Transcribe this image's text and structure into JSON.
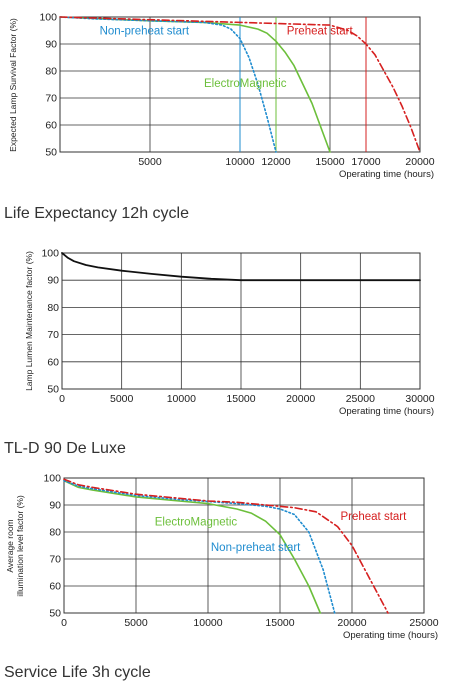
{
  "captions": [
    "Life Expectancy 12h cycle",
    "TL-D 90 De Luxe",
    "Service Life 3h cycle"
  ],
  "colors": {
    "grid": "#333333",
    "black": "#111111",
    "green": "#6cbf3b",
    "blue": "#1f8ccf",
    "red": "#d62020"
  },
  "chart_data": [
    {
      "type": "line",
      "title": "",
      "xlabel": "Operating time (hours)",
      "ylabel": "Expected Lamp Survival Factor (%)",
      "xlim": [
        0,
        20000
      ],
      "ylim": [
        50,
        100
      ],
      "xticks": [
        5000,
        10000,
        12000,
        15000,
        17000,
        20000
      ],
      "xtick_labels": [
        "5000",
        "10000",
        "12000",
        "15000",
        "17000",
        "20000"
      ],
      "xgrid": [
        5000,
        10000,
        15000,
        20000
      ],
      "yticks": [
        50,
        60,
        70,
        80,
        90,
        100
      ],
      "ytick_labels": [
        "50",
        "60",
        "70",
        "80",
        "90",
        "100"
      ],
      "grid": true,
      "series": [
        {
          "name": "ElectroMagnetic",
          "color": "green",
          "style": "solid",
          "x": [
            0,
            2000,
            5000,
            8000,
            10000,
            11000,
            11500,
            12000,
            12500,
            13000,
            14000,
            15000
          ],
          "y": [
            100,
            99.4,
            98.6,
            98,
            97,
            95.5,
            94,
            91,
            87,
            82,
            68,
            50
          ]
        },
        {
          "name": "Non-preheat start",
          "color": "blue",
          "style": "dotted",
          "x": [
            0,
            2000,
            5000,
            8000,
            9000,
            9500,
            10000,
            10500,
            11000,
            11500,
            12000
          ],
          "y": [
            100,
            99.3,
            98.6,
            98,
            97,
            95.5,
            92,
            85,
            75,
            63,
            50
          ]
        },
        {
          "name": "Preheat start",
          "color": "red",
          "style": "dashdot",
          "x": [
            0,
            5000,
            10000,
            15000,
            16000,
            16500,
            17000,
            17500,
            18000,
            18500,
            19000,
            19500,
            20000
          ],
          "y": [
            100,
            99,
            98,
            97,
            95,
            93,
            90,
            86,
            80,
            74,
            67,
            59,
            50
          ]
        }
      ],
      "vlines": [
        {
          "x": 10000,
          "color": "blue"
        },
        {
          "x": 12000,
          "color": "green"
        },
        {
          "x": 17000,
          "color": "red"
        }
      ],
      "annotations": [
        {
          "text": "Non-preheat start",
          "color": "blue",
          "x": 2200,
          "y": 93.5
        },
        {
          "text": "ElectroMagnetic",
          "color": "green",
          "x": 8000,
          "y": 74
        },
        {
          "text": "Preheat start",
          "color": "red",
          "x": 12600,
          "y": 93.5
        }
      ]
    },
    {
      "type": "line",
      "title": "",
      "xlabel": "Operating time (hours)",
      "ylabel": "Lamp Lumen Maintenance factor (%)",
      "xlim": [
        0,
        30000
      ],
      "ylim": [
        50,
        100
      ],
      "xticks": [
        0,
        5000,
        10000,
        15000,
        20000,
        25000,
        30000
      ],
      "xtick_labels": [
        "0",
        "5000",
        "10000",
        "15000",
        "20000",
        "25000",
        "30000"
      ],
      "xgrid": [
        0,
        5000,
        10000,
        15000,
        20000,
        25000,
        30000
      ],
      "yticks": [
        50,
        60,
        70,
        80,
        90,
        100
      ],
      "ytick_labels": [
        "50",
        "60",
        "70",
        "80",
        "90",
        "100"
      ],
      "grid": true,
      "series": [
        {
          "name": "",
          "color": "black",
          "style": "solid",
          "x": [
            0,
            500,
            1000,
            2000,
            3000,
            5000,
            7500,
            10000,
            12500,
            15000,
            20000,
            25000,
            30000
          ],
          "y": [
            100,
            98.2,
            97,
            95.6,
            94.7,
            93.5,
            92.3,
            91.3,
            90.5,
            90,
            90,
            90,
            90
          ]
        }
      ],
      "vlines": [],
      "annotations": []
    },
    {
      "type": "line",
      "title": "",
      "xlabel": "Operating time (hours)",
      "ylabel": "Average room illumination level factor (%)",
      "ylabel_lines": [
        "Average room",
        "illumination level factor (%)"
      ],
      "xlim": [
        0,
        25000
      ],
      "ylim": [
        50,
        100
      ],
      "xticks": [
        0,
        5000,
        10000,
        15000,
        20000,
        25000
      ],
      "xtick_labels": [
        "0",
        "5000",
        "10000",
        "15000",
        "20000",
        "25000"
      ],
      "xgrid": [
        0,
        5000,
        10000,
        15000,
        20000,
        25000
      ],
      "yticks": [
        50,
        60,
        70,
        80,
        90,
        100
      ],
      "ytick_labels": [
        "50",
        "60",
        "70",
        "80",
        "90",
        "100"
      ],
      "grid": true,
      "series": [
        {
          "name": "ElectroMagnetic",
          "color": "green",
          "style": "solid",
          "x": [
            0,
            1000,
            2000,
            5000,
            8000,
            10000,
            12000,
            13000,
            14000,
            15000,
            16000,
            17000,
            17800
          ],
          "y": [
            99,
            96.5,
            95.5,
            93,
            91.5,
            90.5,
            88.5,
            87,
            84,
            79,
            70,
            60,
            50
          ]
        },
        {
          "name": "Non-preheat start",
          "color": "blue",
          "style": "dotted",
          "x": [
            0,
            1000,
            2000,
            5000,
            8000,
            10000,
            12000,
            14000,
            15000,
            16000,
            17000,
            18000,
            18800
          ],
          "y": [
            99,
            97,
            96,
            93.5,
            92,
            91.3,
            90.5,
            89.5,
            88.5,
            86.5,
            80,
            66,
            50
          ]
        },
        {
          "name": "Preheat start",
          "color": "red",
          "style": "dashdot",
          "x": [
            0,
            1000,
            2000,
            5000,
            8000,
            10000,
            12000,
            14000,
            16000,
            17500,
            19000,
            20000,
            21000,
            22000,
            22500
          ],
          "y": [
            99.5,
            97.5,
            96.5,
            94,
            92.5,
            91.5,
            91,
            90,
            89,
            87.5,
            82,
            75,
            65,
            55,
            50
          ]
        }
      ],
      "vlines": [],
      "annotations": [
        {
          "text": "ElectroMagnetic",
          "color": "green",
          "x": 6300,
          "y": 82.5
        },
        {
          "text": "Non-preheat start",
          "color": "blue",
          "x": 10200,
          "y": 73
        },
        {
          "text": "Preheat start",
          "color": "red",
          "x": 19200,
          "y": 84.5
        }
      ]
    }
  ]
}
